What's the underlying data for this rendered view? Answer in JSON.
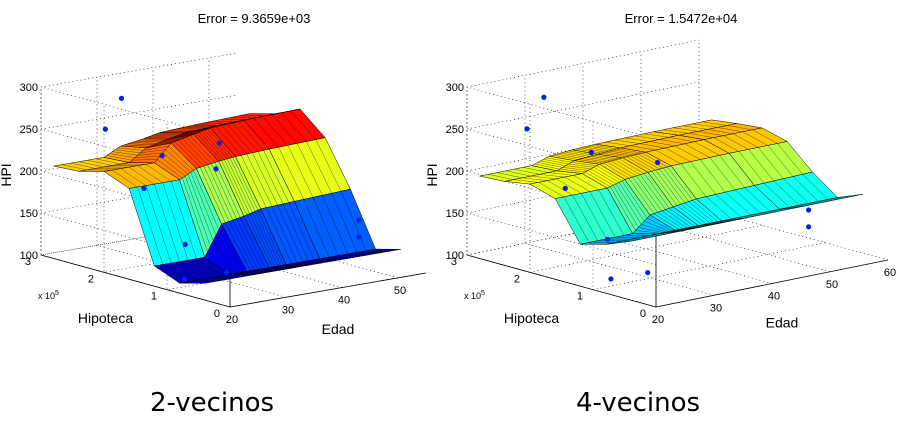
{
  "chart_data": [
    {
      "type": "surface3d",
      "title": "Error = 9.3659e+03",
      "caption": "2-vecinos",
      "xlabel": "Edad",
      "ylabel": "Hipoteca",
      "zlabel": "HPI",
      "y_exponent_label": "x 10",
      "y_exponent_power": "5",
      "xticks": [
        "20",
        "30",
        "40",
        "50"
      ],
      "xlim": [
        20,
        55
      ],
      "yticks": [
        "0",
        "1",
        "2",
        "3"
      ],
      "ylim": [
        0,
        3
      ],
      "zticks": [
        "100",
        "150",
        "200",
        "250",
        "300"
      ],
      "zlim": [
        100,
        300
      ],
      "grid": true,
      "x_grid": [
        20,
        29,
        32,
        36,
        39,
        45,
        55
      ],
      "y_grid": [
        0.4,
        0.8,
        1.2,
        1.6,
        2.0,
        2.4,
        2.8
      ],
      "z_values": [
        [
          120,
          120,
          120,
          120,
          120,
          120,
          120
        ],
        [
          112,
          112,
          112,
          112,
          112,
          112,
          112
        ],
        [
          124,
          124,
          160,
          165,
          170,
          172,
          175
        ],
        [
          208,
          208,
          218,
          222,
          224,
          226,
          228
        ],
        [
          220,
          220,
          240,
          246,
          250,
          252,
          254
        ],
        [
          212,
          212,
          226,
          232,
          236,
          238,
          240
        ],
        [
          210,
          210,
          220,
          224,
          228,
          230,
          232
        ]
      ],
      "points": [
        {
          "x": 25,
          "y": 0.5,
          "z": 125
        },
        {
          "x": 22,
          "y": 0.9,
          "z": 112
        },
        {
          "x": 30,
          "y": 1.6,
          "z": 130
        },
        {
          "x": 26,
          "y": 1.9,
          "z": 195
        },
        {
          "x": 27,
          "y": 2.6,
          "z": 250
        },
        {
          "x": 31,
          "y": 2.7,
          "z": 280
        },
        {
          "x": 36,
          "y": 2.5,
          "z": 210
        },
        {
          "x": 40,
          "y": 2.0,
          "z": 200
        },
        {
          "x": 44,
          "y": 2.3,
          "z": 220
        },
        {
          "x": 52,
          "y": 0.8,
          "z": 150
        },
        {
          "x": 52,
          "y": 0.8,
          "z": 130
        }
      ]
    },
    {
      "type": "surface3d",
      "title": "Error = 1.5472e+04",
      "caption": "4-vecinos",
      "xlabel": "Edad",
      "ylabel": "Hipoteca",
      "zlabel": "HPI",
      "y_exponent_label": "x 10",
      "y_exponent_power": "5",
      "xticks": [
        "20",
        "30",
        "40",
        "50",
        "60"
      ],
      "xlim": [
        20,
        60
      ],
      "yticks": [
        "0",
        "1",
        "2",
        "3"
      ],
      "ylim": [
        0,
        3
      ],
      "zticks": [
        "100",
        "150",
        "200",
        "250",
        "300"
      ],
      "zlim": [
        100,
        300
      ],
      "grid": true,
      "x_grid": [
        20,
        29,
        32,
        36,
        40,
        50,
        60
      ],
      "y_grid": [
        0.4,
        0.8,
        1.2,
        1.6,
        2.0,
        2.4,
        2.8
      ],
      "z_values": [
        [
          170,
          170,
          170,
          170,
          170,
          170,
          170
        ],
        [
          158,
          158,
          158,
          158,
          158,
          158,
          158
        ],
        [
          150,
          150,
          168,
          172,
          176,
          178,
          180
        ],
        [
          196,
          196,
          202,
          205,
          207,
          208,
          208
        ],
        [
          205,
          205,
          212,
          214,
          215,
          216,
          216
        ],
        [
          200,
          200,
          208,
          210,
          212,
          213,
          213
        ],
        [
          198,
          198,
          205,
          207,
          208,
          209,
          209
        ]
      ],
      "points": [
        {
          "x": 24,
          "y": 0.5,
          "z": 125
        },
        {
          "x": 22,
          "y": 0.9,
          "z": 112
        },
        {
          "x": 29,
          "y": 1.6,
          "z": 135
        },
        {
          "x": 25,
          "y": 1.9,
          "z": 195
        },
        {
          "x": 26,
          "y": 2.6,
          "z": 250
        },
        {
          "x": 30,
          "y": 2.7,
          "z": 280
        },
        {
          "x": 36,
          "y": 2.5,
          "z": 210
        },
        {
          "x": 42,
          "y": 2.0,
          "z": 200
        },
        {
          "x": 55,
          "y": 0.8,
          "z": 150
        },
        {
          "x": 55,
          "y": 0.8,
          "z": 130
        }
      ]
    }
  ]
}
